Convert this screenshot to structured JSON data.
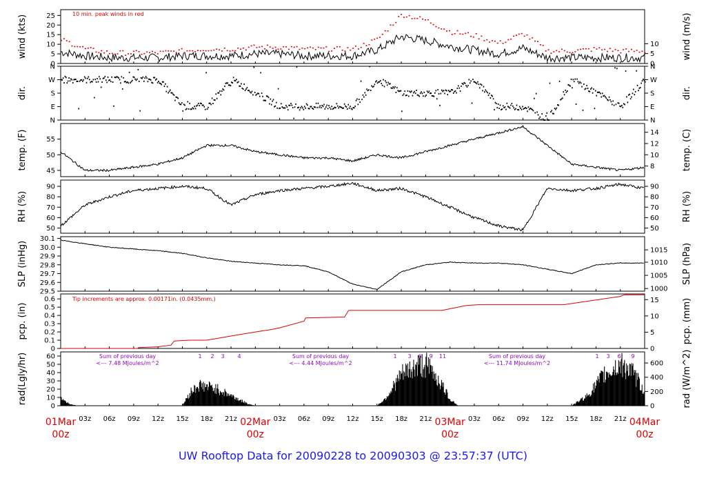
{
  "title": "UW Rooftop Data for 20090228  to  20090303 @ 23:57:37  (UTC)",
  "colors": {
    "frame": "#000000",
    "precip": "#e00000",
    "peak": "#e00000",
    "note": "#e00000",
    "rad_note": "#9900cc",
    "title": "#1a1aee",
    "date": "#e00000"
  },
  "time_axis": {
    "hour_labels": [
      "03z",
      "06z",
      "09z",
      "12z",
      "15z",
      "18z",
      "21z",
      "03z",
      "06z",
      "09z",
      "12z",
      "15z",
      "18z",
      "21z",
      "03z",
      "06z",
      "09z",
      "12z",
      "15z",
      "18z",
      "21z"
    ],
    "date_labels": [
      {
        "date": "01Mar",
        "hour": "00z"
      },
      {
        "date": "02Mar",
        "hour": "00z"
      },
      {
        "date": "03Mar",
        "hour": "00z"
      },
      {
        "date": "04Mar",
        "hour": "00z"
      }
    ]
  },
  "panels": {
    "wind": {
      "left_label": "wind (kts)",
      "right_label": "wind (m/s)",
      "left_ticks": [
        "0",
        "5",
        "10",
        "15",
        "20",
        "25"
      ],
      "right_ticks": [
        "0",
        "5",
        "10"
      ],
      "note": "10 min. peak winds in red"
    },
    "dir": {
      "left_label": "dir.",
      "right_label": "dir.",
      "left_ticks": [
        "N",
        "E",
        "S",
        "W",
        "N"
      ],
      "right_ticks": [
        "N",
        "E",
        "S",
        "W",
        "N"
      ]
    },
    "temp": {
      "left_label": "temp. (F)",
      "right_label": "temp. (C)",
      "left_ticks": [
        "45",
        "50",
        "55"
      ],
      "right_ticks": [
        "8",
        "10",
        "12",
        "14"
      ]
    },
    "rh": {
      "left_label": "RH (%)",
      "right_label": "RH (%)",
      "left_ticks": [
        "50",
        "60",
        "70",
        "80",
        "90"
      ],
      "right_ticks": [
        "50",
        "60",
        "70",
        "80",
        "90"
      ]
    },
    "slp": {
      "left_label": "SLP (inHg)",
      "right_label": "SLP (hPa)",
      "left_ticks": [
        "29.5",
        "29.6",
        "29.7",
        "29.8",
        "29.9",
        "30.0",
        "30.1"
      ],
      "right_ticks": [
        "1000",
        "1005",
        "1010",
        "1015"
      ]
    },
    "pcp": {
      "left_label": "pcp. (in)",
      "right_label": "pcp. (mm)",
      "left_ticks": [
        "0",
        "0.1",
        "0.2",
        "0.3",
        "0.4",
        "0.5",
        "0.6"
      ],
      "right_ticks": [
        "0",
        "5",
        "10",
        "15"
      ],
      "note": "Tip increments are approx. 0.00171in. (0.0435mm.)"
    },
    "rad": {
      "left_label": "rad(Lgly/hr)",
      "right_label": "rad (W/m^2)",
      "left_ticks": [
        "0",
        "10",
        "20",
        "30",
        "40",
        "50",
        "60"
      ],
      "right_ticks": [
        "0",
        "200",
        "400",
        "600"
      ],
      "notes": [
        {
          "line1": "Sum of previous day",
          "line2": "<--- 7.48 MJoules/m^2"
        },
        {
          "line1": "Sum of previous day",
          "line2": "<--- 4.44 MJoules/m^2"
        },
        {
          "line1": "Sum of previous day",
          "line2": "<--- 11.74 MJoules/m^2"
        }
      ],
      "hour_marks": [
        [
          "1",
          "2",
          "3",
          "4"
        ],
        [
          "1",
          "3",
          "6",
          "9",
          "11"
        ],
        [
          "1",
          "3",
          "6",
          "9"
        ]
      ]
    }
  },
  "chart_data": [
    {
      "type": "line",
      "name": "wind",
      "xlabel": "",
      "ylabel": "wind (kts)",
      "ylim": [
        0,
        28
      ],
      "x_unit": "hours since 01Mar 00z",
      "x": [
        0,
        3,
        6,
        9,
        12,
        15,
        18,
        21,
        24,
        27,
        30,
        33,
        36,
        39,
        42,
        45,
        48,
        51,
        54,
        57,
        60,
        63,
        66,
        69,
        72
      ],
      "series": [
        {
          "values": [
            6,
            4,
            3,
            3,
            3,
            4,
            4,
            4,
            5,
            5,
            4,
            4,
            4,
            7,
            14,
            12,
            9,
            7,
            5,
            8,
            3,
            3,
            3,
            3,
            3
          ]
        },
        {
          "name": "10 min. peak winds in red",
          "values": [
            12,
            7,
            5,
            5,
            5,
            6,
            7,
            7,
            8,
            8,
            7,
            7,
            7,
            12,
            25,
            22,
            16,
            14,
            10,
            15,
            6,
            6,
            7,
            6,
            6
          ]
        }
      ]
    },
    {
      "type": "scatter",
      "name": "dir.",
      "ylim": [
        "N",
        "N"
      ],
      "x": [
        0,
        3,
        6,
        9,
        12,
        15,
        18,
        21,
        24,
        27,
        30,
        33,
        36,
        39,
        42,
        45,
        48,
        51,
        54,
        57,
        60,
        63,
        66,
        69,
        72
      ],
      "values": [
        "W",
        "W",
        "W",
        "W",
        "W",
        "E",
        "E",
        "W",
        "S",
        "E",
        "E",
        "E",
        "E",
        "W",
        "S",
        "S",
        "S",
        "W",
        "E",
        "E",
        "N",
        "W",
        "S",
        "E",
        "W"
      ]
    },
    {
      "type": "line",
      "name": "temp.",
      "ylabel": "temp. (F)",
      "ylim": [
        43,
        60
      ],
      "x": [
        0,
        3,
        6,
        9,
        12,
        15,
        18,
        21,
        24,
        27,
        30,
        33,
        36,
        39,
        42,
        45,
        48,
        51,
        54,
        57,
        60,
        63,
        66,
        69,
        72
      ],
      "series": [
        {
          "values": [
            51,
            45,
            45,
            46,
            47,
            49,
            53,
            53,
            51,
            50,
            49,
            49,
            48,
            50,
            49,
            51,
            53,
            55,
            57,
            59,
            53,
            47,
            46,
            45,
            46
          ]
        }
      ]
    },
    {
      "type": "line",
      "name": "RH",
      "ylabel": "RH (%)",
      "ylim": [
        45,
        96
      ],
      "x": [
        0,
        3,
        6,
        9,
        12,
        15,
        18,
        21,
        24,
        27,
        30,
        33,
        36,
        39,
        42,
        45,
        48,
        51,
        54,
        57,
        60,
        63,
        66,
        69,
        72
      ],
      "series": [
        {
          "values": [
            52,
            72,
            80,
            86,
            88,
            90,
            88,
            72,
            82,
            86,
            88,
            90,
            93,
            86,
            88,
            80,
            70,
            60,
            52,
            48,
            88,
            86,
            88,
            92,
            88
          ]
        }
      ]
    },
    {
      "type": "line",
      "name": "SLP",
      "ylabel": "SLP (inHg)",
      "ylim": [
        29.5,
        30.12
      ],
      "x": [
        0,
        3,
        6,
        9,
        12,
        15,
        18,
        21,
        24,
        27,
        30,
        33,
        36,
        39,
        42,
        45,
        48,
        51,
        54,
        57,
        60,
        63,
        66,
        69,
        72
      ],
      "series": [
        {
          "values": [
            30.08,
            30.04,
            30.0,
            29.98,
            29.96,
            29.93,
            29.88,
            29.84,
            29.82,
            29.8,
            29.79,
            29.72,
            29.58,
            29.52,
            29.72,
            29.8,
            29.83,
            29.82,
            29.82,
            29.8,
            29.75,
            29.7,
            29.8,
            29.82,
            29.82
          ]
        }
      ]
    },
    {
      "type": "area",
      "name": "pcp.",
      "ylabel": "pcp. (in)",
      "ylim": [
        0,
        0.66
      ],
      "x": [
        0,
        9.5,
        9.6,
        12,
        13.6,
        14,
        16,
        18,
        21,
        24,
        26,
        27,
        30,
        30.2,
        35,
        35.5,
        43,
        47,
        50,
        51.5,
        62,
        69,
        69.5,
        72
      ],
      "series": [
        {
          "values": [
            0,
            0,
            0.01,
            0.02,
            0.04,
            0.09,
            0.1,
            0.1,
            0.15,
            0.2,
            0.23,
            0.25,
            0.33,
            0.37,
            0.38,
            0.46,
            0.46,
            0.46,
            0.52,
            0.53,
            0.53,
            0.63,
            0.65,
            0.65
          ]
        }
      ]
    },
    {
      "type": "area",
      "name": "rad",
      "ylabel": "rad(Lgly/hr)",
      "ylim": [
        0,
        65
      ],
      "x": [
        0,
        1,
        2,
        15,
        16,
        17,
        19,
        21,
        23,
        24,
        39,
        40,
        42,
        44,
        45,
        46,
        47,
        48,
        49,
        63,
        65,
        67,
        69,
        70,
        71,
        72
      ],
      "series": [
        {
          "values": [
            12,
            3,
            0,
            0,
            20,
            30,
            26,
            15,
            3,
            0,
            0,
            10,
            45,
            58,
            60,
            48,
            30,
            10,
            0,
            0,
            15,
            45,
            60,
            55,
            40,
            20
          ]
        }
      ]
    }
  ]
}
